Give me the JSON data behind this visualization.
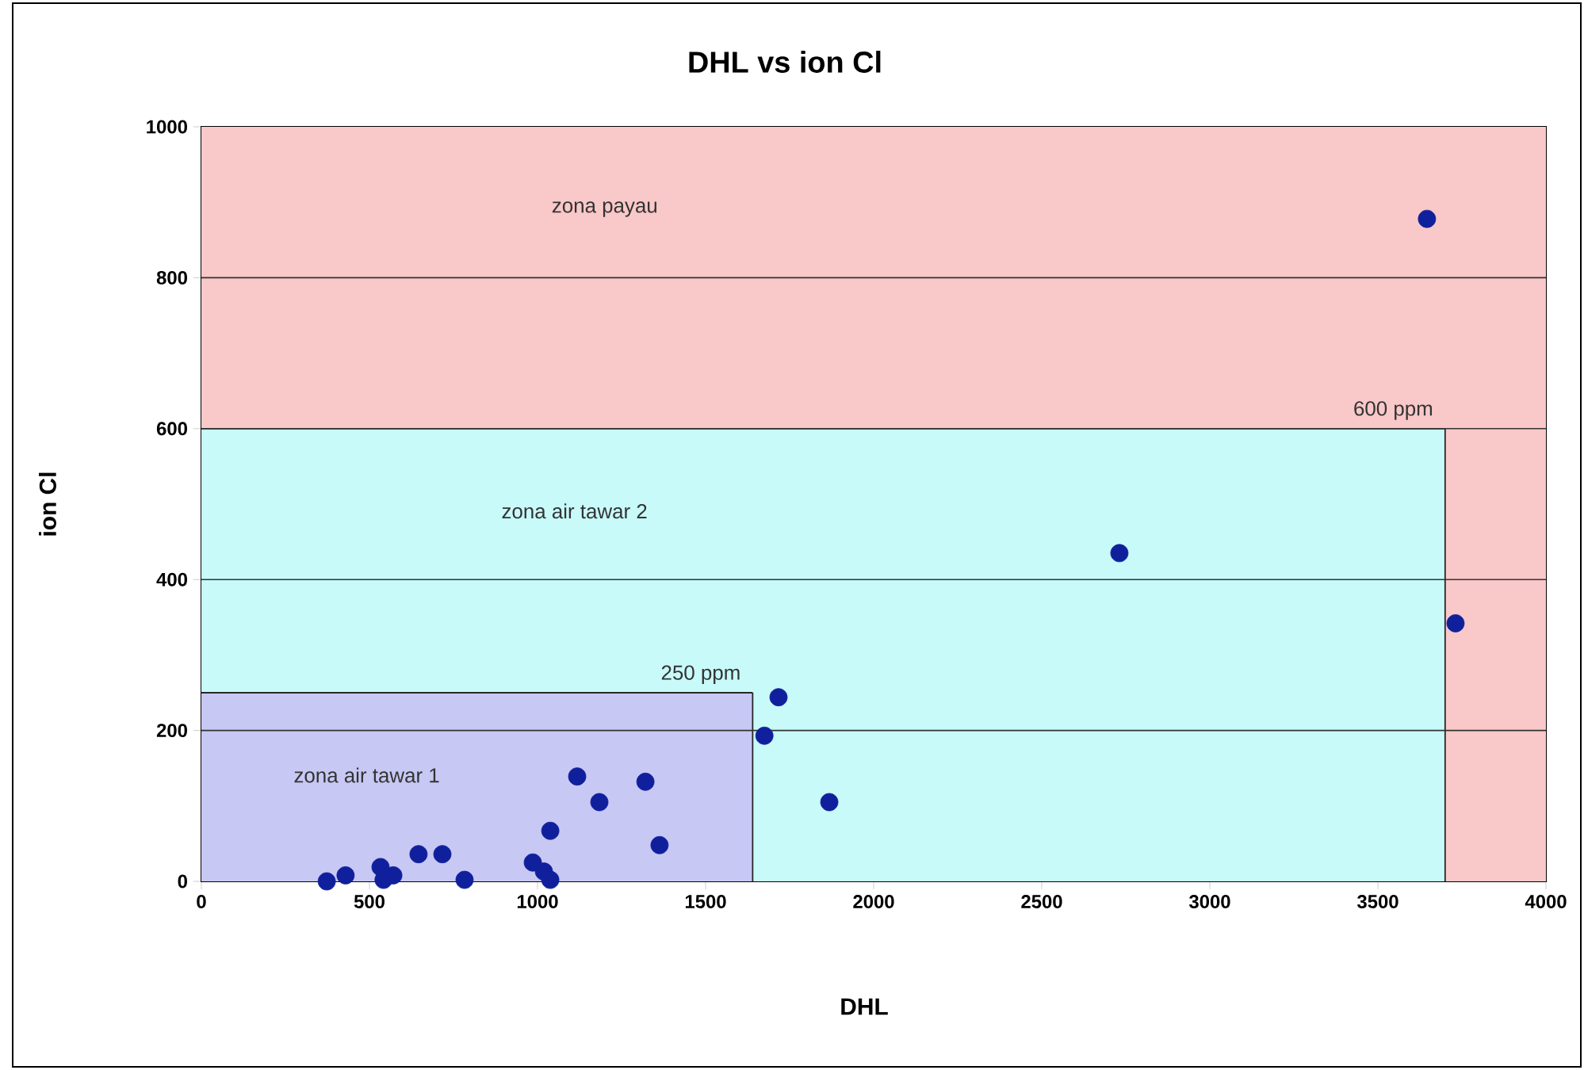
{
  "chart_data": {
    "type": "scatter",
    "title": "DHL vs ion Cl",
    "xlabel": "DHL",
    "ylabel": "ion Cl",
    "xlim": [
      0,
      4000
    ],
    "xticks": [
      0,
      500,
      1000,
      1500,
      2000,
      2500,
      3000,
      3500,
      4000
    ],
    "ylim": [
      0,
      1000
    ],
    "yticks": [
      0,
      200,
      400,
      600,
      800,
      1000
    ],
    "grid": "y",
    "marker": "circle",
    "bands": [
      {
        "axis": "y",
        "from": 0,
        "to": 1000,
        "label": "zona payau",
        "color": "#f9c8c8"
      },
      {
        "axis": "y",
        "from": 0,
        "to": 600,
        "label": "zona air tawar 2",
        "color": "#c8fafa"
      },
      {
        "axis": "y",
        "from": 0,
        "to": 250,
        "label": "zona air tawar 1",
        "color": "#c8c8f5"
      }
    ],
    "ref_lines": [
      {
        "axis": "y",
        "value": 600,
        "label": "600 ppm"
      },
      {
        "axis": "y",
        "value": 250,
        "label": "250 ppm"
      },
      {
        "axis": "x",
        "value": 3700
      },
      {
        "axis": "x",
        "value": 1640
      }
    ],
    "series": [
      {
        "color": "#10209c",
        "x": [
          373,
          429,
          533,
          571,
          542,
          646,
          717,
          783,
          986,
          1019,
          1038,
          1038,
          1118,
          1184,
          1321,
          1363,
          1675,
          1717,
          1868,
          2731,
          3646,
          3731
        ],
        "values": [
          0,
          8,
          19,
          8,
          2,
          36,
          36,
          2,
          25,
          13,
          2,
          67,
          139,
          105,
          132,
          48,
          193,
          244,
          105,
          435,
          878,
          342
        ]
      }
    ]
  }
}
